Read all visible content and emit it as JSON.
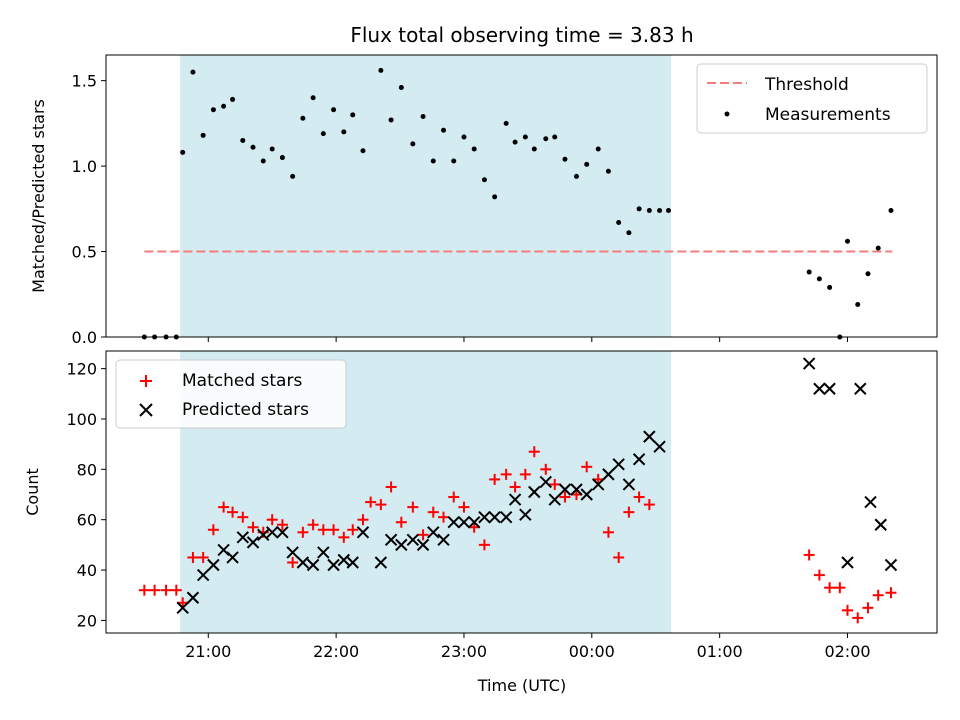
{
  "chart_data": [
    {
      "type": "scatter",
      "title": "Flux total observing time = 3.83 h",
      "ylabel": "Matched/Predicted stars",
      "xlabel": "",
      "ylim": [
        0,
        1.65
      ],
      "yticks": [
        0.0,
        0.5,
        1.0,
        1.5
      ],
      "ytick_labels": [
        "0.0",
        "0.5",
        "1.0",
        "1.5"
      ],
      "xlim": [
        20.2,
        26.7
      ],
      "xticks": [
        21,
        22,
        23,
        24,
        25,
        26
      ],
      "xtick_labels": [
        "",
        "",
        "",
        "",
        "",
        ""
      ],
      "shaded_span": [
        20.78,
        24.62
      ],
      "shaded_color": "#d3ebf1",
      "legend_position": "top-right",
      "threshold": {
        "name": "Threshold",
        "value": 0.5,
        "x_range": [
          20.5,
          26.35
        ],
        "color": "#f47c7c"
      },
      "series": [
        {
          "name": "Measurements",
          "color": "#000000",
          "x": [
            20.5,
            20.58,
            20.67,
            20.75,
            20.8,
            20.88,
            20.96,
            21.04,
            21.12,
            21.19,
            21.27,
            21.35,
            21.43,
            21.5,
            21.58,
            21.66,
            21.74,
            21.82,
            21.9,
            21.98,
            22.06,
            22.13,
            22.21,
            22.35,
            22.43,
            22.51,
            22.6,
            22.68,
            22.76,
            22.84,
            22.92,
            23.0,
            23.08,
            23.16,
            23.24,
            23.33,
            23.4,
            23.48,
            23.55,
            23.64,
            23.71,
            23.79,
            23.88,
            23.96,
            24.05,
            24.13,
            24.21,
            24.29,
            24.37,
            24.45,
            24.53,
            24.6,
            25.7,
            25.78,
            25.86,
            25.94,
            26.0,
            26.08,
            26.16,
            26.24,
            26.34
          ],
          "y": [
            0.0,
            0.0,
            0.0,
            0.0,
            1.08,
            1.55,
            1.18,
            1.33,
            1.35,
            1.39,
            1.15,
            1.11,
            1.03,
            1.1,
            1.05,
            0.94,
            1.28,
            1.4,
            1.19,
            1.33,
            1.2,
            1.3,
            1.09,
            1.56,
            1.27,
            1.46,
            1.13,
            1.29,
            1.03,
            1.21,
            1.03,
            1.17,
            1.1,
            0.92,
            0.82,
            1.25,
            1.14,
            1.17,
            1.1,
            1.16,
            1.17,
            1.04,
            0.94,
            1.01,
            1.1,
            0.97,
            0.67,
            0.61,
            0.75,
            0.74,
            0.74,
            0.74,
            0.38,
            0.34,
            0.29,
            0.0,
            0.56,
            0.19,
            0.37,
            0.52,
            0.74
          ]
        }
      ]
    },
    {
      "type": "scatter",
      "title": "",
      "ylabel": "Count",
      "xlabel": "Time (UTC)",
      "ylim": [
        15,
        127
      ],
      "yticks": [
        20,
        40,
        60,
        80,
        100,
        120
      ],
      "ytick_labels": [
        "20",
        "40",
        "60",
        "80",
        "100",
        "120"
      ],
      "xlim": [
        20.2,
        26.7
      ],
      "xticks": [
        21,
        22,
        23,
        24,
        25,
        26
      ],
      "xtick_labels": [
        "21:00",
        "22:00",
        "23:00",
        "00:00",
        "01:00",
        "02:00"
      ],
      "shaded_span": [
        20.78,
        24.62
      ],
      "shaded_color": "#d3ebf1",
      "legend_position": "top-left",
      "series": [
        {
          "name": "Matched stars",
          "marker": "plus",
          "color": "#ff0000",
          "x": [
            20.5,
            20.58,
            20.67,
            20.75,
            20.8,
            20.88,
            20.96,
            21.04,
            21.12,
            21.19,
            21.27,
            21.35,
            21.43,
            21.5,
            21.58,
            21.66,
            21.74,
            21.82,
            21.9,
            21.98,
            22.06,
            22.13,
            22.21,
            22.27,
            22.35,
            22.43,
            22.51,
            22.6,
            22.68,
            22.76,
            22.84,
            22.92,
            23.0,
            23.08,
            23.16,
            23.24,
            23.33,
            23.4,
            23.48,
            23.55,
            23.64,
            23.71,
            23.79,
            23.88,
            23.96,
            24.05,
            24.13,
            24.21,
            24.29,
            24.37,
            24.45,
            24.53,
            25.7,
            25.78,
            25.86,
            25.94,
            26.0,
            26.08,
            26.16,
            26.24,
            26.34
          ],
          "y": [
            32,
            32,
            32,
            32,
            27,
            45,
            45,
            56,
            65,
            63,
            61,
            57,
            55,
            60,
            58,
            43,
            55,
            58,
            56,
            56,
            53,
            56,
            60,
            67,
            66,
            73,
            59,
            65,
            54,
            63,
            61,
            69,
            65,
            57,
            50,
            76,
            78,
            73,
            78,
            87,
            80,
            74,
            69,
            70,
            81,
            76,
            55,
            45,
            63,
            69,
            66,
            null,
            46,
            38,
            33,
            33,
            24,
            21,
            25,
            30,
            31
          ]
        },
        {
          "name": "Predicted stars",
          "marker": "x",
          "color": "#000000",
          "x": [
            20.8,
            20.88,
            20.96,
            21.04,
            21.12,
            21.19,
            21.27,
            21.35,
            21.43,
            21.5,
            21.58,
            21.66,
            21.74,
            21.82,
            21.9,
            21.98,
            22.06,
            22.13,
            22.21,
            22.35,
            22.43,
            22.51,
            22.6,
            22.68,
            22.76,
            22.84,
            22.92,
            23.0,
            23.08,
            23.16,
            23.24,
            23.33,
            23.4,
            23.48,
            23.55,
            23.64,
            23.71,
            23.79,
            23.88,
            23.96,
            24.05,
            24.13,
            24.21,
            24.29,
            24.37,
            24.45,
            24.53,
            25.7,
            25.78,
            25.86,
            26.0,
            26.1,
            26.18,
            26.26,
            26.34
          ],
          "y": [
            25,
            29,
            38,
            42,
            48,
            45,
            53,
            51,
            54,
            55,
            55,
            47,
            43,
            42,
            47,
            42,
            44,
            43,
            55,
            43,
            52,
            50,
            52,
            50,
            55,
            52,
            59,
            59,
            59,
            61,
            61,
            61,
            68,
            62,
            71,
            75,
            68,
            72,
            72,
            70,
            74,
            78,
            82,
            74,
            84,
            93,
            89,
            122,
            112,
            112,
            43,
            112,
            67,
            58,
            42
          ]
        }
      ]
    }
  ]
}
